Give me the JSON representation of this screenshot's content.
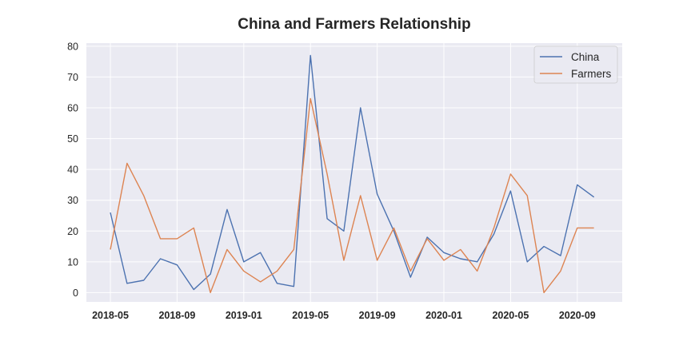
{
  "chart_data": {
    "type": "line",
    "title": "China and Farmers Relationship",
    "xlabel": "",
    "ylabel": "",
    "x": [
      "2018-05",
      "2018-06",
      "2018-07",
      "2018-08",
      "2018-09",
      "2018-10",
      "2018-11",
      "2018-12",
      "2019-01",
      "2019-02",
      "2019-03",
      "2019-04",
      "2019-05",
      "2019-06",
      "2019-07",
      "2019-08",
      "2019-09",
      "2019-10",
      "2019-11",
      "2019-12",
      "2020-01",
      "2020-02",
      "2020-03",
      "2020-04",
      "2020-05",
      "2020-06",
      "2020-07",
      "2020-08",
      "2020-09",
      "2020-10"
    ],
    "x_ticks": [
      "2018-05",
      "2018-09",
      "2019-01",
      "2019-05",
      "2019-09",
      "2020-01",
      "2020-05",
      "2020-09"
    ],
    "ylim": [
      -3,
      81
    ],
    "y_ticks": [
      0,
      10,
      20,
      30,
      40,
      50,
      60,
      70,
      80
    ],
    "grid": true,
    "legend_position": "top-right",
    "series": [
      {
        "name": "China",
        "color": "#4c72b0",
        "values": [
          26,
          3,
          4,
          11,
          9,
          1,
          6,
          27,
          10,
          13,
          3,
          2,
          77,
          24,
          20,
          60,
          32,
          20,
          5,
          18,
          13,
          11,
          10,
          19,
          33,
          10,
          15,
          12,
          35,
          31
        ]
      },
      {
        "name": "Farmers",
        "color": "#dd8452",
        "values": [
          14,
          42,
          31.5,
          17.5,
          17.5,
          21,
          0,
          14,
          7,
          3.5,
          7,
          14,
          63,
          38.5,
          10.5,
          31.5,
          10.5,
          21,
          7,
          17.5,
          10.5,
          14,
          7,
          21,
          38.5,
          31.5,
          0,
          7,
          21,
          21
        ]
      }
    ]
  }
}
